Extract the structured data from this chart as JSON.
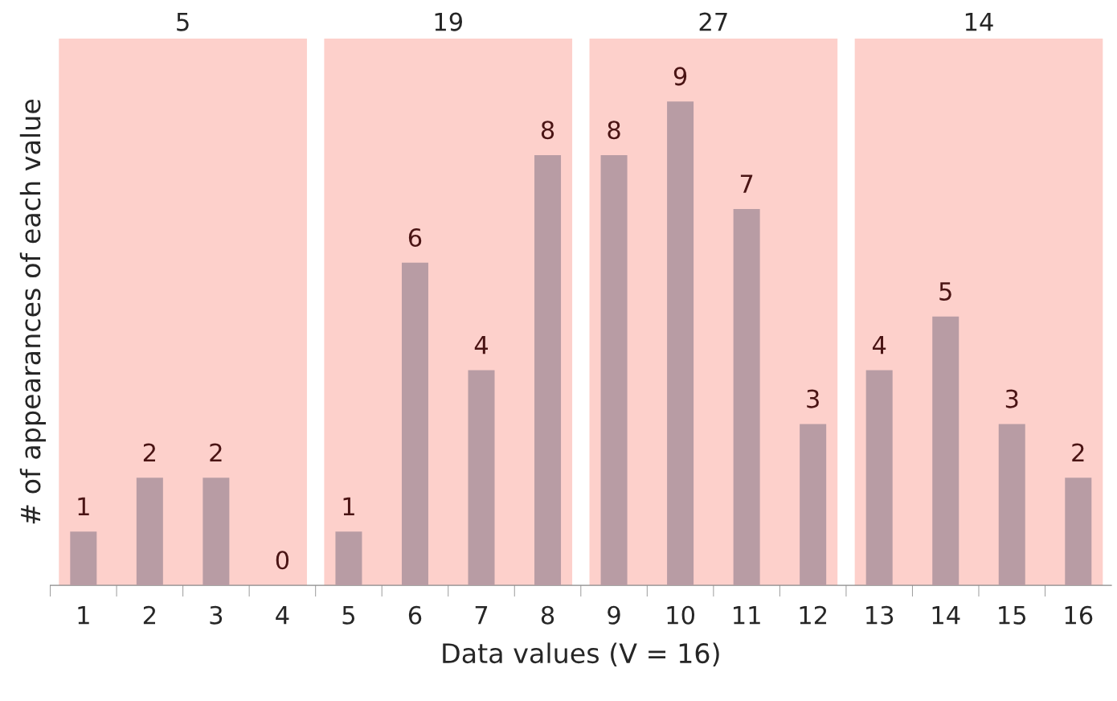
{
  "chart_data": {
    "type": "bar",
    "xlabel": "Data values (V = 16)",
    "ylabel": "# of appearances of each value",
    "categories": [
      "1",
      "2",
      "3",
      "4",
      "5",
      "6",
      "7",
      "8",
      "9",
      "10",
      "11",
      "12",
      "13",
      "14",
      "15",
      "16"
    ],
    "values": [
      1,
      2,
      2,
      0,
      1,
      6,
      4,
      8,
      8,
      9,
      7,
      3,
      4,
      5,
      3,
      2
    ],
    "color": "#b89ca4",
    "data_labels": true,
    "bands": [
      {
        "axis": "x",
        "from": "1",
        "to": "4",
        "label": "5",
        "color": "#fdd0cb"
      },
      {
        "axis": "x",
        "from": "5",
        "to": "8",
        "label": "19",
        "color": "#fdd0cb"
      },
      {
        "axis": "x",
        "from": "9",
        "to": "12",
        "label": "27",
        "color": "#fdd0cb"
      },
      {
        "axis": "x",
        "from": "13",
        "to": "16",
        "label": "14",
        "color": "#fdd0cb"
      }
    ]
  }
}
